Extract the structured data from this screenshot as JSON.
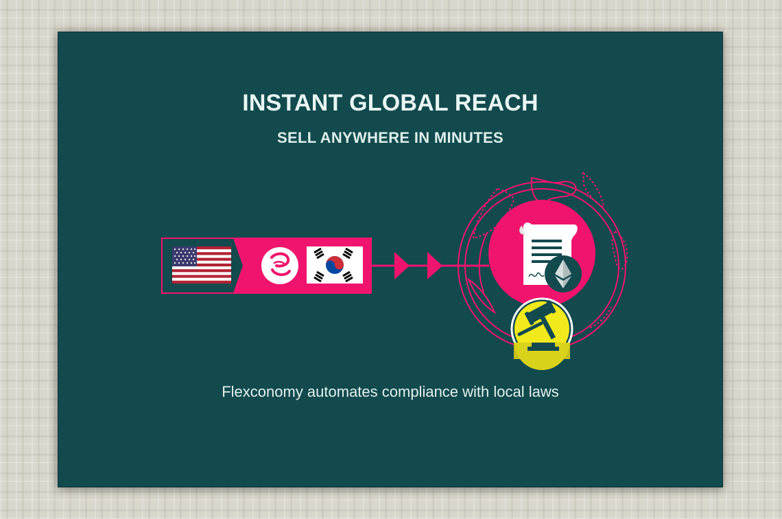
{
  "slide": {
    "title": "INSTANT GLOBAL REACH",
    "subtitle": "SELL ANYWHERE IN MINUTES",
    "caption": "Flexconomy automates compliance with local laws"
  },
  "graphic": {
    "icons": [
      "us-flag-icon",
      "flexconomy-logo-icon",
      "south-korea-flag-icon",
      "arrow-icon",
      "contract-document-icon",
      "ethereum-icon",
      "gavel-icon",
      "globe-icon"
    ]
  },
  "colors": {
    "slide_background": "#124a4e",
    "accent_pink": "#f0146e",
    "gavel_yellow": "#f2e91c",
    "text": "#e9f6f3"
  }
}
